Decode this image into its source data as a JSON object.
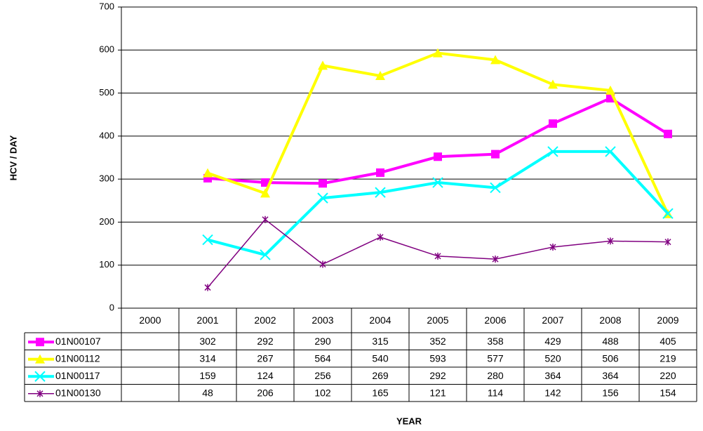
{
  "chart_data": {
    "type": "line",
    "y_label": "HCV / DAY",
    "x_label": "YEAR",
    "categories": [
      "2000",
      "2001",
      "2002",
      "2003",
      "2004",
      "2005",
      "2006",
      "2007",
      "2008",
      "2009"
    ],
    "series": [
      {
        "name": "01N00107",
        "color": "#ff00ff",
        "marker": "square",
        "line_width": 4,
        "values": [
          null,
          302,
          292,
          290,
          315,
          352,
          358,
          429,
          488,
          405
        ]
      },
      {
        "name": "01N00112",
        "color": "#ffff00",
        "marker": "triangle",
        "line_width": 4,
        "values": [
          null,
          314,
          267,
          564,
          540,
          593,
          577,
          520,
          506,
          219
        ]
      },
      {
        "name": "01N00117",
        "color": "#00ffff",
        "marker": "x",
        "line_width": 4,
        "values": [
          null,
          159,
          124,
          256,
          269,
          292,
          280,
          364,
          364,
          220
        ]
      },
      {
        "name": "01N00130",
        "color": "#800080",
        "marker": "asterisk",
        "line_width": 1.5,
        "values": [
          null,
          48,
          206,
          102,
          165,
          121,
          114,
          142,
          156,
          154
        ]
      }
    ],
    "ylim": [
      0,
      700
    ],
    "yticks": [
      0,
      100,
      200,
      300,
      400,
      500,
      600,
      700
    ],
    "grid": true,
    "data_table": true
  }
}
